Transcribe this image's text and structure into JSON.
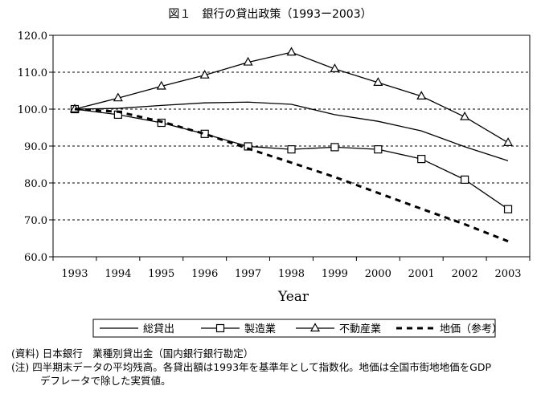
{
  "chart_data": {
    "type": "line",
    "title": "図１　銀行の貸出政策（1993ー2003）",
    "xlabel": "Year",
    "ylabel": "",
    "categories": [
      "1993",
      "1994",
      "1995",
      "1996",
      "1997",
      "1998",
      "1999",
      "2000",
      "2001",
      "2002",
      "2003"
    ],
    "ylim": [
      60.0,
      120.0
    ],
    "yticks": [
      "60.0",
      "70.0",
      "80.0",
      "90.0",
      "100.0",
      "110.0",
      "120.0"
    ],
    "grid": "horizontal dashed",
    "series": [
      {
        "name": "総貸出",
        "style": "solid",
        "marker": "none",
        "values": [
          100.0,
          100.2,
          101.0,
          101.7,
          101.9,
          101.3,
          98.5,
          96.7,
          94.1,
          89.8,
          86.0
        ]
      },
      {
        "name": "製造業",
        "style": "solid",
        "marker": "square",
        "values": [
          100.0,
          98.5,
          96.3,
          93.3,
          89.9,
          89.1,
          89.7,
          89.1,
          86.5,
          80.9,
          72.9
        ]
      },
      {
        "name": "不動産業",
        "style": "solid",
        "marker": "triangle",
        "values": [
          100.0,
          103.0,
          106.2,
          109.2,
          112.7,
          115.4,
          110.9,
          107.2,
          103.5,
          97.9,
          90.9
        ]
      },
      {
        "name": "地価（参考）",
        "style": "dashed",
        "marker": "none",
        "values": [
          100.0,
          99.3,
          96.6,
          93.3,
          89.3,
          85.5,
          81.6,
          77.3,
          73.0,
          68.8,
          64.2
        ]
      }
    ],
    "legend_position": "bottom",
    "legend_labels": [
      "総貸出",
      "製造業",
      "不動産業",
      "地価（参考）"
    ]
  },
  "notes": {
    "source": "(資料) 日本銀行　業種別貸出金（国内銀行銀行勘定）",
    "note_line1": "(注) 四半期末データの平均残高。各貸出額は1993年を基準年として指数化。地価は全国市街地地価をGDP",
    "note_line2": "デフレータで除した実質値。"
  },
  "colors": {
    "ink": "#000000",
    "background": "#ffffff"
  }
}
